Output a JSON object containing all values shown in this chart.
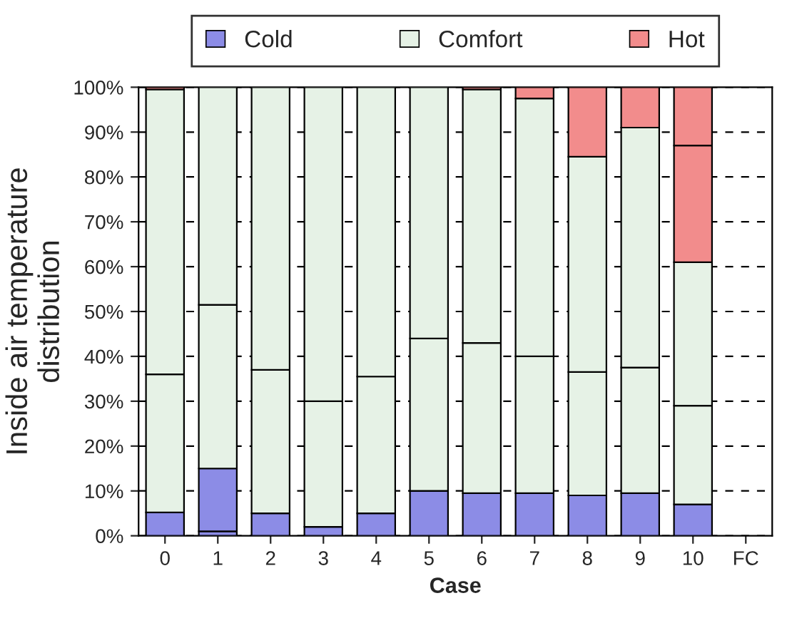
{
  "chart_data": {
    "type": "bar",
    "stacked": true,
    "xlabel": "Case",
    "ylabel": "Inside air temperature\ndistribution",
    "categories": [
      "0",
      "1",
      "2",
      "3",
      "4",
      "5",
      "6",
      "7",
      "8",
      "9",
      "10",
      "FC"
    ],
    "series": [
      {
        "name": "Cold",
        "color": "#8c8ce6",
        "values": [
          5.2,
          1,
          5,
          2,
          5,
          10,
          9.5,
          9.5,
          9,
          9.5,
          7,
          null
        ]
      },
      {
        "color": "#8c8ce6",
        "values": [
          null,
          14,
          null,
          null,
          null,
          null,
          null,
          null,
          null,
          null,
          null,
          null
        ]
      },
      {
        "name": "Comfort",
        "color": "#e6f2e6",
        "values": [
          30.8,
          36.5,
          32,
          28,
          30.5,
          34,
          33.5,
          30.5,
          27.5,
          28,
          22,
          null
        ]
      },
      {
        "color": "#e6f2e6",
        "values": [
          63.5,
          48.5,
          63,
          70,
          64.5,
          56,
          56.5,
          57.5,
          48,
          53.5,
          32,
          null
        ]
      },
      {
        "name": "Hot",
        "color": "#f28c8c",
        "values": [
          0.5,
          null,
          null,
          null,
          null,
          null,
          0.5,
          2.5,
          15.5,
          9,
          26,
          null
        ]
      },
      {
        "color": "#f28c8c",
        "values": [
          null,
          null,
          null,
          null,
          null,
          null,
          null,
          null,
          null,
          null,
          13,
          null
        ]
      }
    ],
    "ylim": [
      0,
      100
    ],
    "yticks": [
      {
        "value": 0,
        "label": "0%"
      },
      {
        "value": 10,
        "label": "10%"
      },
      {
        "value": 20,
        "label": "20%"
      },
      {
        "value": 30,
        "label": "30%"
      },
      {
        "value": 40,
        "label": "40%"
      },
      {
        "value": 50,
        "label": "50%"
      },
      {
        "value": 60,
        "label": "60%"
      },
      {
        "value": 70,
        "label": "70%"
      },
      {
        "value": 80,
        "label": "80%"
      },
      {
        "value": 90,
        "label": "90%"
      },
      {
        "value": 100,
        "label": "100%"
      }
    ],
    "grid": "y",
    "legend": "top"
  }
}
